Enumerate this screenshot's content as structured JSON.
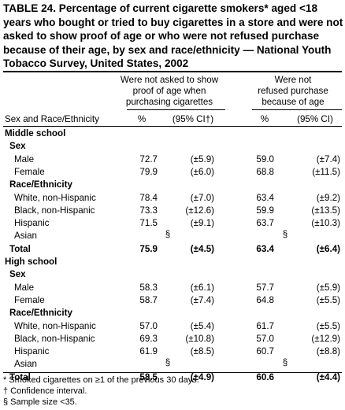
{
  "title": "TABLE 24. Percentage of current cigarette smokers* aged <18 years who bought or tried to buy cigarettes in a store and were not asked to show proof of age or who were not refused purchase because of their age, by sex and race/ethnicity — National Youth Tobacco Survey, United States, 2002",
  "header": {
    "group1": [
      "Were not asked to show",
      "proof of age when",
      "purchasing cigarettes"
    ],
    "group2": [
      "Were not",
      "refused purchase",
      "because of age"
    ],
    "row_label": "Sex and Race/Ethnicity",
    "pct": "%",
    "ci": "(95% CI†)",
    "pct2": "%",
    "ci2": "(95% CI)"
  },
  "rows": [
    {
      "label": "Middle school",
      "kind": "section"
    },
    {
      "label": "Sex",
      "kind": "sub"
    },
    {
      "label": "Male",
      "kind": "data",
      "p1": "72.7",
      "c1": "(±5.9)",
      "p2": "59.0",
      "c2": "(±7.4)"
    },
    {
      "label": "Female",
      "kind": "data",
      "p1": "79.9",
      "c1": "(±6.0)",
      "p2": "68.8",
      "c2": "(±11.5)"
    },
    {
      "label": "Race/Ethnicity",
      "kind": "sub"
    },
    {
      "label": "White, non-Hispanic",
      "kind": "data",
      "p1": "78.4",
      "c1": "(±7.0)",
      "p2": "63.4",
      "c2": "(±9.2)"
    },
    {
      "label": "Black, non-Hispanic",
      "kind": "data",
      "p1": "73.3",
      "c1": "(±12.6)",
      "p2": "59.9",
      "c2": "(±13.5)"
    },
    {
      "label": "Hispanic",
      "kind": "data",
      "p1": "71.5",
      "c1": "(±9.1)",
      "p2": "63.7",
      "c2": "(±10.3)"
    },
    {
      "label": "Asian",
      "kind": "suppressed",
      "s1": "§",
      "s2": "§"
    },
    {
      "label": "Total",
      "kind": "total",
      "p1": "75.9",
      "c1": "(±4.5)",
      "p2": "63.4",
      "c2": "(±6.4)"
    },
    {
      "label": "High school",
      "kind": "section"
    },
    {
      "label": "Sex",
      "kind": "sub"
    },
    {
      "label": "Male",
      "kind": "data",
      "p1": "58.3",
      "c1": "(±6.1)",
      "p2": "57.7",
      "c2": "(±5.9)"
    },
    {
      "label": "Female",
      "kind": "data",
      "p1": "58.7",
      "c1": "(±7.4)",
      "p2": "64.8",
      "c2": "(±5.5)"
    },
    {
      "label": "Race/Ethnicity",
      "kind": "sub"
    },
    {
      "label": "White, non-Hispanic",
      "kind": "data",
      "p1": "57.0",
      "c1": "(±5.4)",
      "p2": "61.7",
      "c2": "(±5.5)"
    },
    {
      "label": "Black, non-Hispanic",
      "kind": "data",
      "p1": "69.3",
      "c1": "(±10.8)",
      "p2": "57.0",
      "c2": "(±12.9)"
    },
    {
      "label": "Hispanic",
      "kind": "data",
      "p1": "61.9",
      "c1": "(±8.5)",
      "p2": "60.7",
      "c2": "(±8.8)"
    },
    {
      "label": "Asian",
      "kind": "suppressed",
      "s1": "§",
      "s2": "§"
    },
    {
      "label": "Total",
      "kind": "total",
      "p1": "58.5",
      "c1": "(±4.9)",
      "p2": "60.6",
      "c2": "(±4.4)"
    }
  ],
  "footnotes": [
    "* Smoked cigarettes on ≥1 of the previous 30 days.",
    "† Confidence interval.",
    "§ Sample size <35."
  ]
}
